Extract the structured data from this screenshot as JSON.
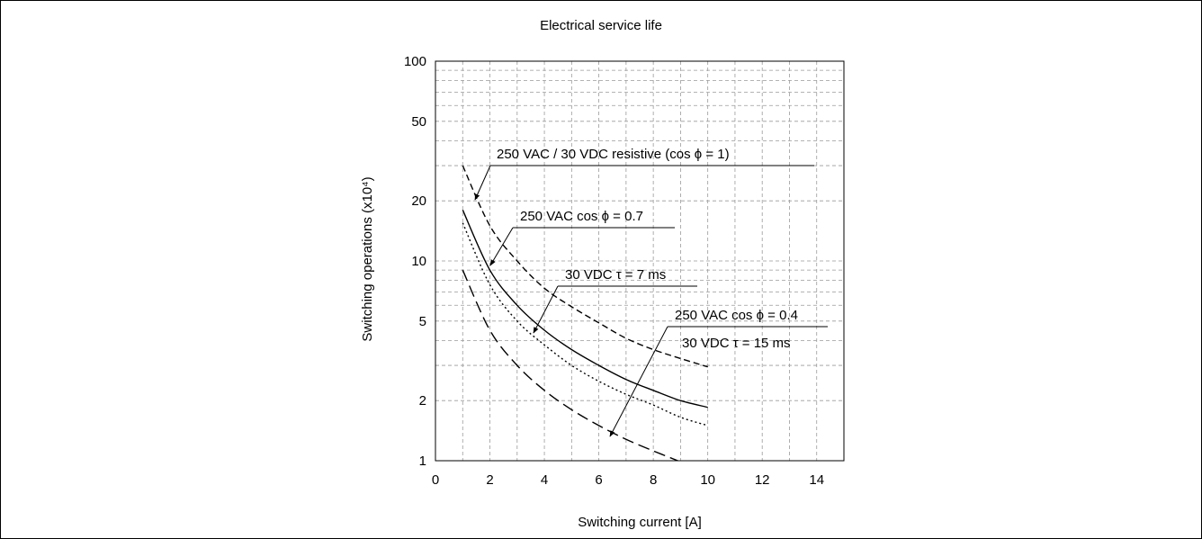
{
  "chart_data": {
    "type": "line",
    "title": "Electrical service life",
    "xlabel": "Switching current [A]",
    "ylabel": "Switching operations (x10⁴)",
    "xlim": [
      0,
      15
    ],
    "ylim": [
      1,
      100
    ],
    "yscale": "log",
    "grid": true,
    "x_ticks": [
      "0",
      "2",
      "4",
      "6",
      "8",
      "10",
      "12",
      "14"
    ],
    "y_ticks": [
      "1",
      "2",
      "5",
      "10",
      "20",
      "50",
      "100"
    ],
    "series": [
      {
        "name": "250 VAC / 30 VDC resistive (cos ϕ = 1)",
        "style": "dashed",
        "x": [
          1,
          2,
          3,
          4,
          5,
          6,
          7,
          8,
          9,
          10
        ],
        "y": [
          30,
          15,
          10,
          7.3,
          5.9,
          4.9,
          4.1,
          3.6,
          3.25,
          2.95
        ]
      },
      {
        "name": "250 VAC cos ϕ = 0.7",
        "style": "solid",
        "x": [
          1,
          2,
          3,
          4,
          5,
          6,
          7,
          8,
          9,
          10
        ],
        "y": [
          18,
          9,
          6,
          4.5,
          3.6,
          3.0,
          2.55,
          2.25,
          2.0,
          1.85
        ]
      },
      {
        "name": "30 VDC τ = 7 ms",
        "style": "dotted",
        "x": [
          1,
          2,
          3,
          4,
          5,
          6,
          7,
          8,
          9,
          10
        ],
        "y": [
          15.5,
          7.6,
          5.0,
          3.8,
          3.0,
          2.5,
          2.15,
          1.9,
          1.65,
          1.5
        ]
      },
      {
        "name": "250 VAC cos ϕ = 0.4 / 30 VDC τ = 15 ms",
        "style": "long-dash",
        "x": [
          1,
          2,
          3,
          4,
          5,
          6,
          7,
          8,
          8.9
        ],
        "y": [
          9,
          4.5,
          3.0,
          2.25,
          1.8,
          1.5,
          1.28,
          1.12,
          1.0
        ]
      }
    ],
    "annotations": [
      "250 VAC / 30 VDC resistive (cos ϕ = 1)",
      "250 VAC cos ϕ = 0.7",
      "30 VDC τ = 7 ms",
      "250 VAC cos ϕ = 0.4",
      "30 VDC τ = 15 ms"
    ]
  }
}
